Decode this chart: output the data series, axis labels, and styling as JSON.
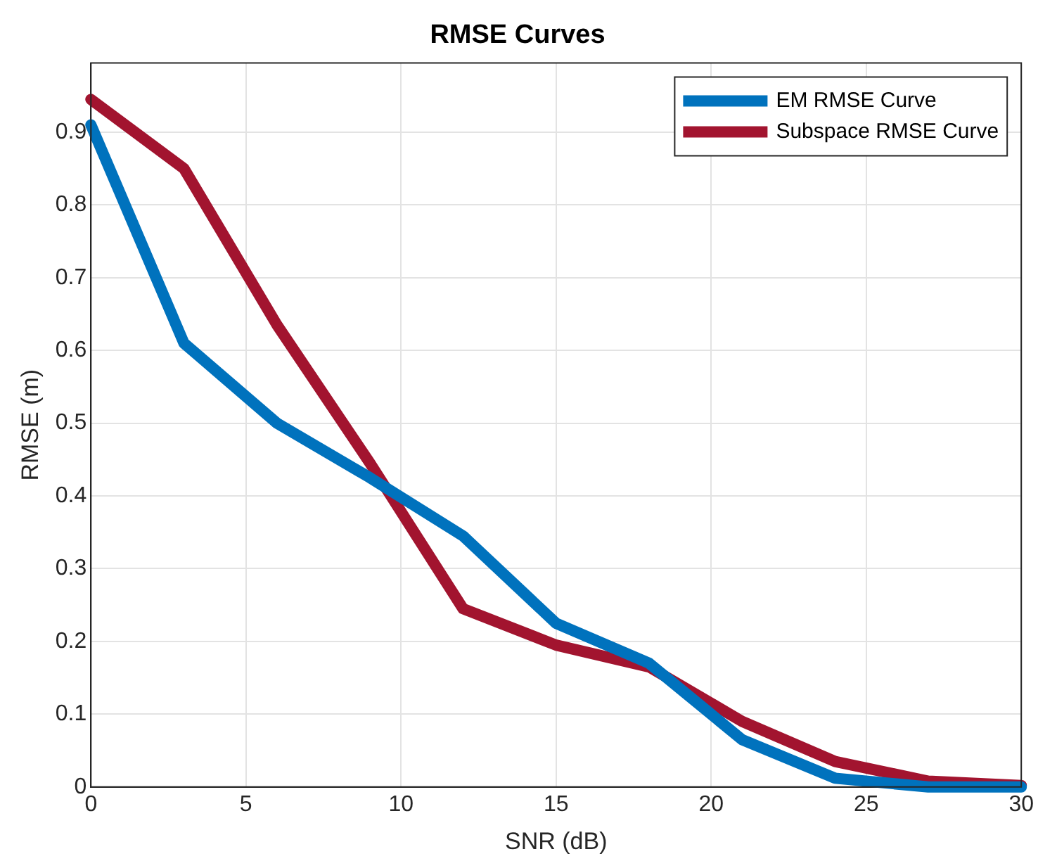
{
  "chart_data": {
    "type": "line",
    "title": "RMSE Curves",
    "xlabel": "SNR (dB)",
    "ylabel": "RMSE (m)",
    "x": [
      0,
      3,
      6,
      9,
      12,
      15,
      18,
      21,
      24,
      27,
      30
    ],
    "series": [
      {
        "name": "EM RMSE Curve",
        "color": "#0072bd",
        "values": [
          0.91,
          0.61,
          0.5,
          0.425,
          0.345,
          0.225,
          0.17,
          0.065,
          0.012,
          0.0,
          0.0
        ]
      },
      {
        "name": "Subspace RMSE Curve",
        "color": "#a2142f",
        "values": [
          0.945,
          0.85,
          0.635,
          0.445,
          0.245,
          0.195,
          0.165,
          0.09,
          0.035,
          0.008,
          0.002
        ]
      }
    ],
    "xlim": [
      0,
      30
    ],
    "xticks": [
      0,
      5,
      10,
      15,
      20,
      25,
      30
    ],
    "ylim": [
      0,
      0.995
    ],
    "yticks": [
      0,
      0.1,
      0.2,
      0.3,
      0.4,
      0.5,
      0.6,
      0.7,
      0.8,
      0.9
    ],
    "grid": true,
    "legend": "top right",
    "marker": "none",
    "line_style": "solid"
  }
}
